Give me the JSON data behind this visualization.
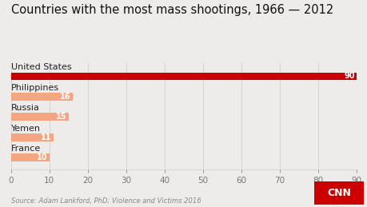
{
  "title": "Countries with the most mass shootings, 1966 — 2012",
  "categories": [
    "United States",
    "Philippines",
    "Russia",
    "Yemen",
    "France"
  ],
  "values": [
    90,
    16,
    15,
    11,
    10
  ],
  "bar_colors": [
    "#CC0000",
    "#F4A582",
    "#F4A582",
    "#F4A582",
    "#F4A582"
  ],
  "xlim": [
    0,
    90
  ],
  "xticks": [
    0,
    10,
    20,
    30,
    40,
    50,
    60,
    70,
    80,
    90
  ],
  "background_color": "#EDECEA",
  "source_text": "Source: Adam Lankford, PhD; Violence and Victims 2016",
  "cnn_bg": "#CC0000",
  "title_fontsize": 10.5,
  "tick_fontsize": 7.5,
  "label_fontsize": 7,
  "country_fontsize": 8,
  "bar_height": 0.38
}
